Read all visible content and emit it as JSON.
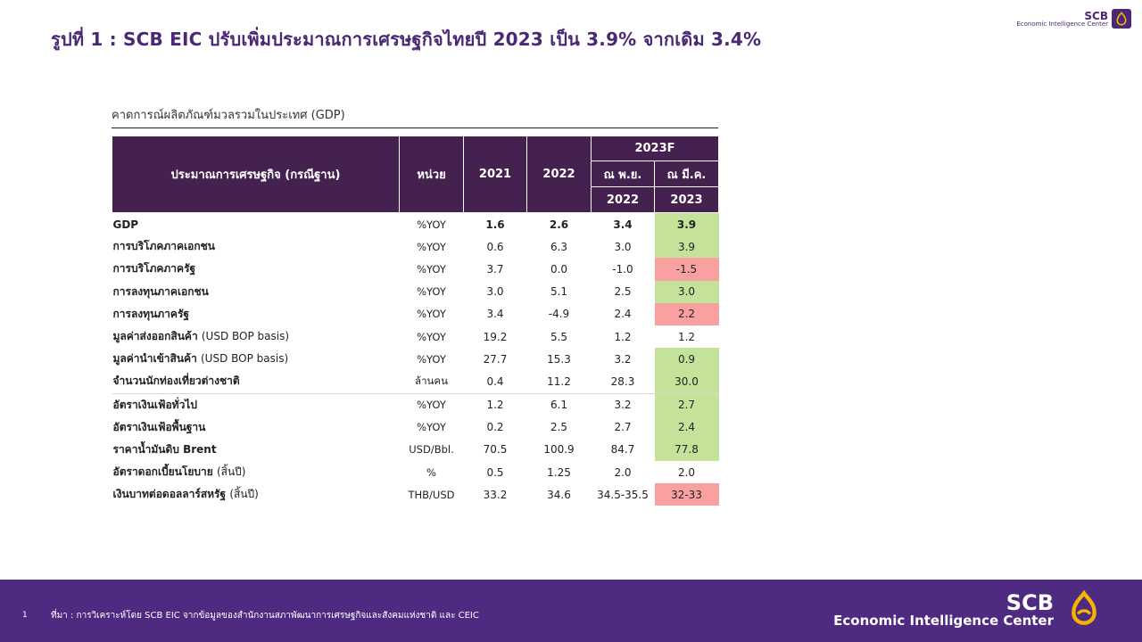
{
  "title": "รูปที่ 1 : SCB EIC ปรับเพิ่มประมาณการเศรษฐกิจไทยปี 2023 เป็น 3.9% จากเดิม 3.4%",
  "brand": {
    "name": "SCB",
    "unit": "Economic Intelligence Center",
    "color": "#4a2875",
    "icon": "scb-tulip-logo-icon"
  },
  "subtitle": "คาดการณ์ผลิตภัณฑ์มวลรวมในประเทศ (GDP)",
  "table": {
    "headers": {
      "indicator": "ประมาณการเศรษฐกิจ (กรณีฐาน)",
      "unit": "หน่วย",
      "y2021": "2021",
      "y2022": "2022",
      "forecast": "2023F",
      "as_of_nov": "ณ พ.ย.",
      "as_of_mar": "ณ มี.ค.",
      "as_of_nov_year": "2022",
      "as_of_mar_year": "2023"
    },
    "rows": [
      {
        "label": "GDP",
        "note": "",
        "unit": "%YOY",
        "v2021": "1.6",
        "v2022": "2.6",
        "nov": "3.4",
        "mar": "3.9"
      },
      {
        "label": "การบริโภคภาคเอกชน",
        "note": "",
        "unit": "%YOY",
        "v2021": "0.6",
        "v2022": "6.3",
        "nov": "3.0",
        "mar": "3.9"
      },
      {
        "label": "การบริโภคภาครัฐ",
        "note": "",
        "unit": "%YOY",
        "v2021": "3.7",
        "v2022": "0.0",
        "nov": "-1.0",
        "mar": "-1.5"
      },
      {
        "label": "การลงทุนภาคเอกชน",
        "note": "",
        "unit": "%YOY",
        "v2021": "3.0",
        "v2022": "5.1",
        "nov": "2.5",
        "mar": "3.0"
      },
      {
        "label": "การลงทุนภาครัฐ",
        "note": "",
        "unit": "%YOY",
        "v2021": "3.4",
        "v2022": "-4.9",
        "nov": "2.4",
        "mar": "2.2"
      },
      {
        "label": "มูลค่าส่งออกสินค้า",
        "note": "(USD BOP basis)",
        "unit": "%YOY",
        "v2021": "19.2",
        "v2022": "5.5",
        "nov": "1.2",
        "mar": "1.2"
      },
      {
        "label": "มูลค่านำเข้าสินค้า",
        "note": "(USD BOP basis)",
        "unit": "%YOY",
        "v2021": "27.7",
        "v2022": "15.3",
        "nov": "3.2",
        "mar": "0.9"
      },
      {
        "label": "จำนวนนักท่องเที่ยวต่างชาติ",
        "note": "",
        "unit": "ล้านคน",
        "v2021": "0.4",
        "v2022": "11.2",
        "nov": "28.3",
        "mar": "30.0"
      },
      {
        "label": "อัตราเงินเฟ้อทั่วไป",
        "note": "",
        "unit": "%YOY",
        "v2021": "1.2",
        "v2022": "6.1",
        "nov": "3.2",
        "mar": "2.7"
      },
      {
        "label": "อัตราเงินเฟ้อพื้นฐาน",
        "note": "",
        "unit": "%YOY",
        "v2021": "0.2",
        "v2022": "2.5",
        "nov": "2.7",
        "mar": "2.4"
      },
      {
        "label": "ราคาน้ำมันดิบ Brent",
        "note": "",
        "unit": "USD/Bbl.",
        "v2021": "70.5",
        "v2022": "100.9",
        "nov": "84.7",
        "mar": "77.8"
      },
      {
        "label": "อัตราดอกเบี้ยนโยบาย",
        "note": "(สิ้นปี)",
        "unit": "%",
        "v2021": "0.5",
        "v2022": "1.25",
        "nov": "2.0",
        "mar": "2.0"
      },
      {
        "label": "เงินบาทต่อดอลลาร์สหรัฐ",
        "note": "(สิ้นปี)",
        "unit": "THB/USD",
        "v2021": "33.2",
        "v2022": "34.6",
        "nov": "34.5-35.5",
        "mar": "32-33"
      }
    ],
    "colors": {
      "header": "#45214f",
      "up": "#c5e29b",
      "down": "#f9a0a0"
    }
  },
  "footer": {
    "page": "1",
    "source": "ที่มา : การวิเคราะห์โดย SCB EIC จากข้อมูลของสำนักงานสภาพัฒนาการเศรษฐกิจและสังคมแห่งชาติ และ CEIC",
    "background": "#4e2a80"
  }
}
